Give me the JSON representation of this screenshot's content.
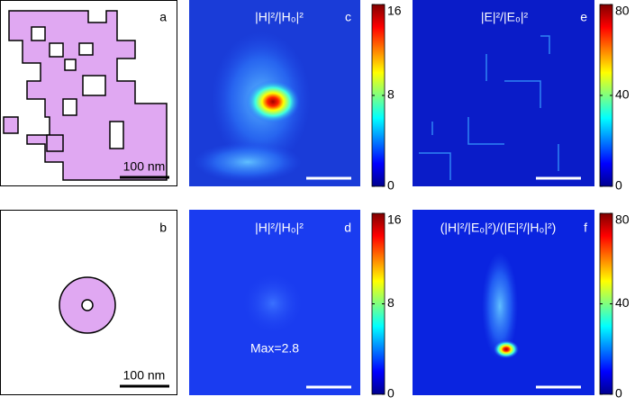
{
  "panels": [
    {
      "label": "a",
      "scale_bar": "100 nm"
    },
    {
      "label": "b",
      "scale_bar": "100 nm"
    },
    {
      "label": "c",
      "title": "|H|²/|H₀|²",
      "colorbar": {
        "lim": [
          0,
          16
        ],
        "ticks": [
          0,
          8,
          16
        ]
      }
    },
    {
      "label": "d",
      "title": "|H|²/|H₀|²",
      "annotation": "Max=2.8",
      "colorbar": {
        "lim": [
          0,
          16
        ],
        "ticks": [
          0,
          8,
          16
        ]
      }
    },
    {
      "label": "e",
      "title": "|E|²/|E₀|²",
      "colorbar": {
        "lim": [
          0,
          80
        ],
        "ticks": [
          0,
          40,
          80
        ]
      }
    },
    {
      "label": "f",
      "title": "(|H|²/|E₀|²)/(|E|²/|H₀|²)",
      "colorbar": {
        "lim": [
          0,
          80
        ],
        "ticks": [
          0,
          40,
          80
        ]
      }
    }
  ]
}
